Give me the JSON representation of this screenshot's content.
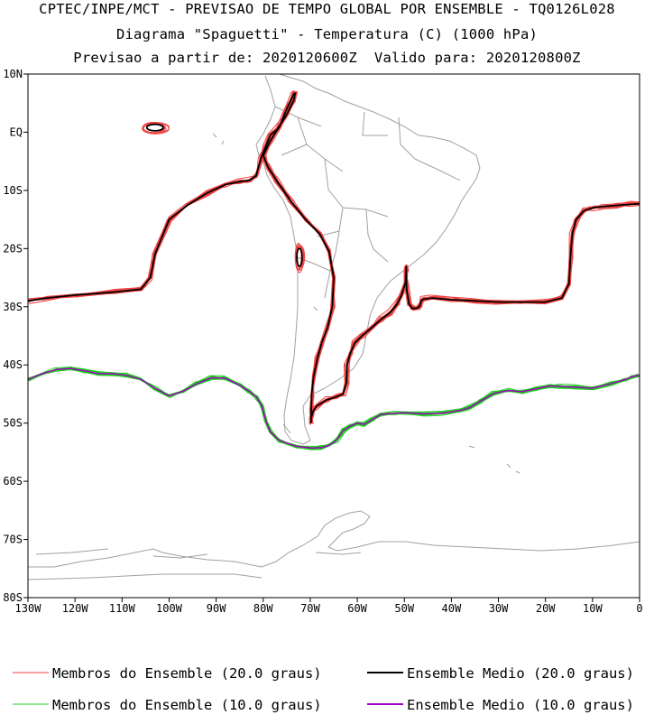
{
  "title": {
    "line1": "CPTEC/INPE/MCT - PREVISAO DE TEMPO GLOBAL POR ENSEMBLE - TQ0126L028",
    "line2": "Diagrama \"Spaguetti\" - Temperatura (C) (1000 hPa)",
    "line3": "Previsao a partir de: 2020120600Z  Valido para: 2020120800Z"
  },
  "chart_data": {
    "type": "line",
    "xlim": [
      -130,
      0
    ],
    "ylim": [
      -80,
      10
    ],
    "x_ticks": [
      {
        "value": -130,
        "label": "130W"
      },
      {
        "value": -120,
        "label": "120W"
      },
      {
        "value": -110,
        "label": "110W"
      },
      {
        "value": -100,
        "label": "100W"
      },
      {
        "value": -90,
        "label": "90W"
      },
      {
        "value": -80,
        "label": "80W"
      },
      {
        "value": -70,
        "label": "70W"
      },
      {
        "value": -60,
        "label": "60W"
      },
      {
        "value": -50,
        "label": "50W"
      },
      {
        "value": -40,
        "label": "40W"
      },
      {
        "value": -30,
        "label": "30W"
      },
      {
        "value": -20,
        "label": "20W"
      },
      {
        "value": -10,
        "label": "10W"
      },
      {
        "value": 0,
        "label": "0"
      }
    ],
    "y_ticks": [
      {
        "value": 10,
        "label": "10N"
      },
      {
        "value": 0,
        "label": "EQ"
      },
      {
        "value": -10,
        "label": "10S"
      },
      {
        "value": -20,
        "label": "20S"
      },
      {
        "value": -30,
        "label": "30S"
      },
      {
        "value": -40,
        "label": "40S"
      },
      {
        "value": -50,
        "label": "50S"
      },
      {
        "value": -60,
        "label": "60S"
      },
      {
        "value": -70,
        "label": "70S"
      },
      {
        "value": -80,
        "label": "80S"
      }
    ],
    "colors": {
      "member20": "#f04040",
      "mean20": "#000000",
      "member10": "#20d020",
      "mean10": "#a000c0",
      "map": "#a0a0a0"
    },
    "series": [
      {
        "name": "Ensemble Medio (20.0 graus)",
        "x": [
          -130,
          -126,
          -120,
          -112,
          -106,
          -104,
          -103,
          -100,
          -96,
          -92,
          -88,
          -85,
          -83,
          -81.5,
          -80.5,
          -79.5,
          -78.5,
          -77,
          -75,
          -73.5,
          -73.2,
          -73.5,
          -75,
          -76.5,
          -78.5,
          -80,
          -79,
          -77,
          -74,
          -71,
          -68,
          -66,
          -65,
          -65.3,
          -66.3,
          -67.5,
          -68.5,
          -69.3,
          -69.7,
          -69.8,
          -69.8,
          -69.8,
          -69.3,
          -68.5,
          -66.5,
          -64.5,
          -63,
          -62.3,
          -62.2,
          -61.5,
          -60.5,
          -59,
          -56.8,
          -55,
          -53,
          -51.5,
          -50.6,
          -49.8,
          -49.6,
          -49.6,
          -49.6,
          -49.5,
          -49,
          -48.3,
          -47.5,
          -46.8,
          -46.6,
          -46.4,
          -46,
          -44,
          -40,
          -35,
          -30,
          -25,
          -20,
          -16.5,
          -15,
          -14.7,
          -14.3,
          -13.5,
          -11.8,
          -10,
          -8,
          -5,
          -2,
          0
        ],
        "y": [
          -29,
          -28.5,
          -28,
          -27.5,
          -27,
          -25,
          -21,
          -15,
          -12.5,
          -10.5,
          -9,
          -8.5,
          -8.3,
          -7.5,
          -4.5,
          -2.5,
          -0.5,
          0.5,
          3,
          5.5,
          6.7,
          6.6,
          4,
          1,
          -1.5,
          -4,
          -6,
          -8.5,
          -12,
          -15,
          -17.5,
          -20.5,
          -25,
          -30,
          -33.5,
          -36,
          -39,
          -42,
          -45,
          -47.5,
          -50,
          -49,
          -47.8,
          -47,
          -46,
          -45.5,
          -45,
          -43,
          -40,
          -38,
          -36.2,
          -35,
          -33.5,
          -32.2,
          -31,
          -29.5,
          -28,
          -26,
          -24,
          -23,
          -24.5,
          -27,
          -29.5,
          -30.3,
          -30.3,
          -30,
          -29.5,
          -29,
          -28.7,
          -28.5,
          -28.8,
          -29,
          -29.2,
          -29.2,
          -29.2,
          -28.5,
          -26,
          -21.5,
          -17.5,
          -15,
          -13.5,
          -13,
          -12.8,
          -12.6,
          -12.4,
          -12.3
        ]
      },
      {
        "name": "Ensemble Medio (10.0 graus)",
        "x": [
          -130,
          -127,
          -124,
          -121,
          -118,
          -115,
          -112,
          -109,
          -106,
          -103,
          -100,
          -97,
          -94,
          -91,
          -88,
          -85,
          -83,
          -81.5,
          -80.3,
          -79.5,
          -78.5,
          -76.5,
          -73,
          -69.5,
          -67.5,
          -66,
          -64.5,
          -63,
          -61.5,
          -60,
          -58.5,
          -57,
          -55,
          -52,
          -50,
          -46,
          -42,
          -38,
          -36,
          -34,
          -31,
          -28,
          -25,
          -22,
          -19,
          -17,
          -14,
          -10,
          -6,
          -3,
          -1.5,
          0
        ],
        "y": [
          -42.5,
          -41.5,
          -40.8,
          -40.6,
          -41,
          -41.5,
          -41.5,
          -41.8,
          -42.5,
          -44,
          -45.3,
          -44.5,
          -43.2,
          -42.2,
          -42.3,
          -43.5,
          -44.5,
          -45.5,
          -47,
          -49.5,
          -51.5,
          -53,
          -54,
          -54.3,
          -54.2,
          -53.8,
          -53,
          -51.3,
          -50.5,
          -50,
          -50.2,
          -49.5,
          -48.5,
          -48.3,
          -48.2,
          -48.4,
          -48.3,
          -47.8,
          -47.3,
          -46.3,
          -44.9,
          -44.4,
          -44.6,
          -44.1,
          -43.6,
          -43.7,
          -43.8,
          -44,
          -43.2,
          -42.5,
          -42,
          -41.8
        ]
      }
    ],
    "legend": {
      "position": "bottom",
      "entries": [
        {
          "label": "Membros do Ensemble (20.0 graus)",
          "color": "#f04040"
        },
        {
          "label": "Ensemble Medio (20.0 graus)",
          "color": "#000000"
        },
        {
          "label": "Membros do Ensemble (10.0 graus)",
          "color": "#20d020"
        },
        {
          "label": "Ensemble Medio (10.0 graus)",
          "color": "#a000c0"
        }
      ]
    },
    "islands_20": [
      {
        "cx": -103,
        "cy": 0.8,
        "rx": 2.5,
        "ry": 0.8
      },
      {
        "cx": -72.3,
        "cy": -21.5,
        "rx": 0.8,
        "ry": 2.2
      }
    ]
  }
}
